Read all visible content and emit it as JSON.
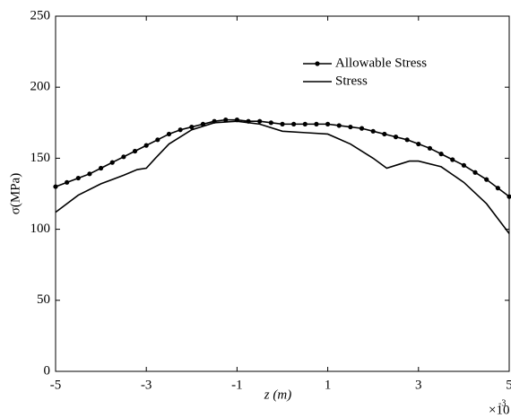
{
  "chart_data": {
    "type": "line",
    "xlabel": "z (m)",
    "ylabel": "σ(MPa)",
    "x_multiplier": "×10",
    "x_multiplier_exp": "-3",
    "xlim": [
      -5,
      5
    ],
    "xticks": [
      -5,
      -3,
      -1,
      1,
      3,
      5
    ],
    "ylim": [
      0,
      250
    ],
    "yticks": [
      0,
      50,
      100,
      150,
      200,
      250
    ],
    "grid": false,
    "legend": "upper right",
    "series": [
      {
        "name": "Allowable Stress",
        "color": "#000000",
        "marker": "circle",
        "x": [
          -5,
          -4.75,
          -4.5,
          -4.25,
          -4,
          -3.75,
          -3.5,
          -3.25,
          -3,
          -2.75,
          -2.5,
          -2.25,
          -2,
          -1.75,
          -1.5,
          -1.25,
          -1,
          -0.75,
          -0.5,
          -0.25,
          0,
          0.25,
          0.5,
          0.75,
          1,
          1.25,
          1.5,
          1.75,
          2,
          2.25,
          2.5,
          2.75,
          3,
          3.25,
          3.5,
          3.75,
          4,
          4.25,
          4.5,
          4.75,
          5
        ],
        "values": [
          130,
          133,
          136,
          139,
          143,
          147,
          151,
          155,
          159,
          163,
          167,
          170,
          172,
          174,
          176,
          177,
          177,
          176,
          176,
          175,
          174,
          174,
          174,
          174,
          174,
          173,
          172,
          171,
          169,
          167,
          165,
          163,
          160,
          157,
          153,
          149,
          145,
          140,
          135,
          129,
          123
        ]
      },
      {
        "name": "Stress",
        "color": "#000000",
        "marker": "none",
        "x": [
          -5,
          -4.5,
          -4,
          -3.5,
          -3.2,
          -3,
          -2.8,
          -2.5,
          -2,
          -1.5,
          -1,
          -0.5,
          0,
          0.5,
          1,
          1.5,
          2,
          2.3,
          2.5,
          2.8,
          3,
          3.5,
          4,
          4.5,
          5
        ],
        "values": [
          112,
          124,
          132,
          138,
          142,
          143,
          150,
          160,
          170,
          175,
          176,
          174,
          169,
          168,
          167,
          160,
          150,
          143,
          145,
          148,
          148,
          144,
          133,
          118,
          97
        ]
      }
    ]
  }
}
